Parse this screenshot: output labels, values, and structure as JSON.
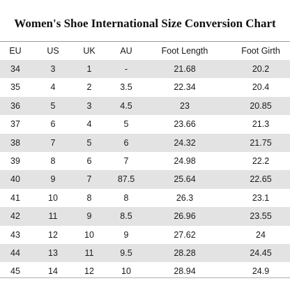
{
  "title": "Women's Shoe International Size Conversion Chart",
  "columns": [
    "EU",
    "US",
    "UK",
    "AU",
    "Foot Length",
    "Foot Girth"
  ],
  "rows": [
    [
      "34",
      "3",
      "1",
      "-",
      "21.68",
      "20.2"
    ],
    [
      "35",
      "4",
      "2",
      "3.5",
      "22.34",
      "20.4"
    ],
    [
      "36",
      "5",
      "3",
      "4.5",
      "23",
      "20.85"
    ],
    [
      "37",
      "6",
      "4",
      "5",
      "23.66",
      "21.3"
    ],
    [
      "38",
      "7",
      "5",
      "6",
      "24.32",
      "21.75"
    ],
    [
      "39",
      "8",
      "6",
      "7",
      "24.98",
      "22.2"
    ],
    [
      "40",
      "9",
      "7",
      "87.5",
      "25.64",
      "22.65"
    ],
    [
      "41",
      "10",
      "8",
      "8",
      "26.3",
      "23.1"
    ],
    [
      "42",
      "11",
      "9",
      "8.5",
      "26.96",
      "23.55"
    ],
    [
      "43",
      "12",
      "10",
      "9",
      "27.62",
      "24"
    ],
    [
      "44",
      "13",
      "11",
      "9.5",
      "28.28",
      "24.45"
    ],
    [
      "45",
      "14",
      "12",
      "10",
      "28.94",
      "24.9"
    ]
  ],
  "colors": {
    "stripe": "#e3e3e3",
    "text": "#1a1a1a",
    "rule": "#9a9a9a"
  }
}
